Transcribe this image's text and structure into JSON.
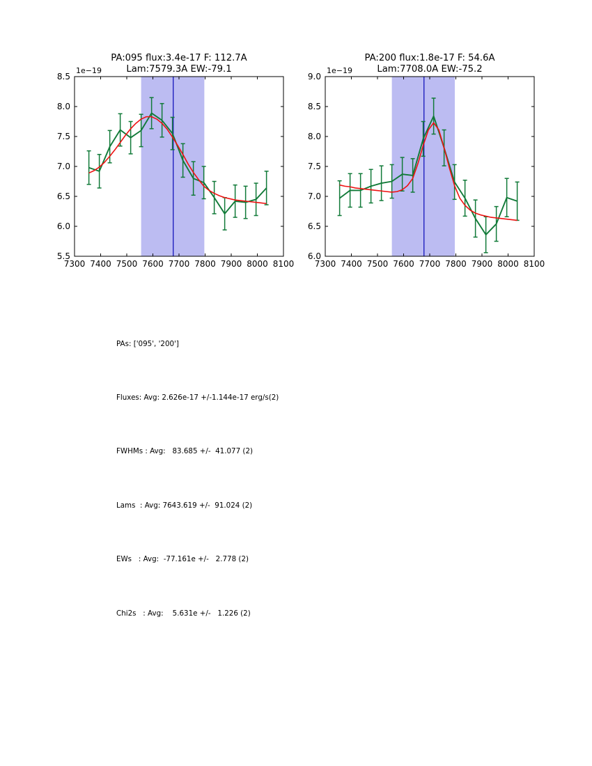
{
  "figure": {
    "background": "#ffffff"
  },
  "stats": {
    "lines": [
      "PAs: ['095', '200']",
      "Fluxes: Avg: 2.626e-17 +/-1.144e-17 erg/s(2)",
      "FWHMs : Avg:   83.685 +/-  41.077 (2)",
      "Lams  : Avg: 7643.619 +/-  91.024 (2)",
      "EWs   : Avg:  -77.161e +/-   2.778 (2)",
      "Chi2s   : Avg:    5.631e +/-   1.226 (2)"
    ]
  },
  "chart_data": [
    {
      "id": "pa095",
      "type": "line",
      "title": [
        "PA:095 flux:3.4e-17 F: 112.7A",
        "Lam:7579.3A EW:-79.1"
      ],
      "offset_text": "1e−19",
      "xlim": [
        7300,
        8100
      ],
      "ylim": [
        5.5,
        8.5
      ],
      "xtick_values": [
        7300,
        7400,
        7500,
        7600,
        7700,
        7800,
        7900,
        8000,
        8100
      ],
      "xtick_labels": [
        "7300",
        "7400",
        "7500",
        "7600",
        "7700",
        "7800",
        "7900",
        "8000",
        "8100"
      ],
      "ytick_values": [
        5.5,
        6.0,
        6.5,
        7.0,
        7.5,
        8.0,
        8.5
      ],
      "ytick_labels": [
        "5.5",
        "6.0",
        "6.5",
        "7.0",
        "7.5",
        "8.0",
        "8.5"
      ],
      "band": [
        7555,
        7797
      ],
      "vline": 7678,
      "x": [
        7355,
        7395,
        7435,
        7475,
        7515,
        7555,
        7595,
        7635,
        7675,
        7715,
        7755,
        7795,
        7835,
        7875,
        7915,
        7955,
        7995,
        8035
      ],
      "y": [
        6.98,
        6.92,
        7.33,
        7.61,
        7.48,
        7.6,
        7.89,
        7.77,
        7.55,
        7.1,
        6.8,
        6.73,
        6.48,
        6.21,
        6.42,
        6.4,
        6.45,
        6.64
      ],
      "yerr": [
        0.28,
        0.28,
        0.27,
        0.27,
        0.27,
        0.27,
        0.26,
        0.28,
        0.27,
        0.28,
        0.28,
        0.27,
        0.27,
        0.27,
        0.27,
        0.27,
        0.27,
        0.28
      ],
      "fit_x": [
        7355,
        7375,
        7395,
        7415,
        7435,
        7455,
        7475,
        7495,
        7515,
        7535,
        7555,
        7575,
        7595,
        7615,
        7635,
        7655,
        7675,
        7695,
        7715,
        7735,
        7755,
        7775,
        7795,
        7815,
        7835,
        7855,
        7875,
        7895,
        7915,
        7935,
        7955,
        7975,
        7995,
        8015,
        8035
      ],
      "fit_y": [
        6.89,
        6.93,
        6.99,
        7.07,
        7.17,
        7.28,
        7.4,
        7.52,
        7.63,
        7.72,
        7.79,
        7.83,
        7.83,
        7.79,
        7.72,
        7.62,
        7.49,
        7.35,
        7.2,
        7.04,
        6.9,
        6.78,
        6.67,
        6.6,
        6.55,
        6.51,
        6.48,
        6.46,
        6.44,
        6.43,
        6.42,
        6.41,
        6.4,
        6.39,
        6.38
      ],
      "colors": {
        "data": "#117a38",
        "fit": "#ee1111",
        "band": "#bcbcf2",
        "vline": "#1414bb"
      }
    },
    {
      "id": "pa200",
      "type": "line",
      "title": [
        "PA:200 flux:1.8e-17 F: 54.6A",
        "Lam:7708.0A EW:-75.2"
      ],
      "offset_text": "1e−19",
      "xlim": [
        7300,
        8100
      ],
      "ylim": [
        6.0,
        9.0
      ],
      "xtick_values": [
        7300,
        7400,
        7500,
        7600,
        7700,
        7800,
        7900,
        8000,
        8100
      ],
      "xtick_labels": [
        "7300",
        "7400",
        "7500",
        "7600",
        "7700",
        "7800",
        "7900",
        "8000",
        "8100"
      ],
      "ytick_values": [
        6.0,
        6.5,
        7.0,
        7.5,
        8.0,
        8.5,
        9.0
      ],
      "ytick_labels": [
        "6.0",
        "6.5",
        "7.0",
        "7.5",
        "8.0",
        "8.5",
        "9.0"
      ],
      "band": [
        7555,
        7796
      ],
      "vline": 7678,
      "x": [
        7355,
        7395,
        7435,
        7475,
        7515,
        7555,
        7595,
        7635,
        7675,
        7715,
        7755,
        7795,
        7835,
        7875,
        7915,
        7955,
        7995,
        8035
      ],
      "y": [
        6.97,
        7.1,
        7.1,
        7.17,
        7.22,
        7.25,
        7.37,
        7.35,
        7.96,
        8.34,
        7.81,
        7.24,
        6.97,
        6.63,
        6.36,
        6.54,
        6.98,
        6.92
      ],
      "yerr": [
        0.29,
        0.28,
        0.28,
        0.28,
        0.29,
        0.28,
        0.28,
        0.28,
        0.29,
        0.3,
        0.3,
        0.29,
        0.3,
        0.31,
        0.3,
        0.29,
        0.32,
        0.32
      ],
      "fit_x": [
        7355,
        7375,
        7395,
        7415,
        7435,
        7455,
        7475,
        7495,
        7515,
        7535,
        7555,
        7575,
        7595,
        7615,
        7635,
        7655,
        7675,
        7695,
        7715,
        7735,
        7755,
        7775,
        7795,
        7815,
        7835,
        7855,
        7875,
        7895,
        7915,
        7935,
        7955,
        7975,
        7995,
        8015,
        8035
      ],
      "fit_y": [
        7.19,
        7.17,
        7.16,
        7.14,
        7.13,
        7.12,
        7.11,
        7.1,
        7.09,
        7.08,
        7.07,
        7.08,
        7.11,
        7.18,
        7.3,
        7.55,
        7.85,
        8.11,
        8.23,
        8.11,
        7.81,
        7.48,
        7.18,
        6.97,
        6.85,
        6.77,
        6.72,
        6.69,
        6.67,
        6.65,
        6.64,
        6.63,
        6.62,
        6.61,
        6.6
      ],
      "colors": {
        "data": "#117a38",
        "fit": "#ee1111",
        "band": "#bcbcf2",
        "vline": "#1414bb"
      }
    }
  ]
}
